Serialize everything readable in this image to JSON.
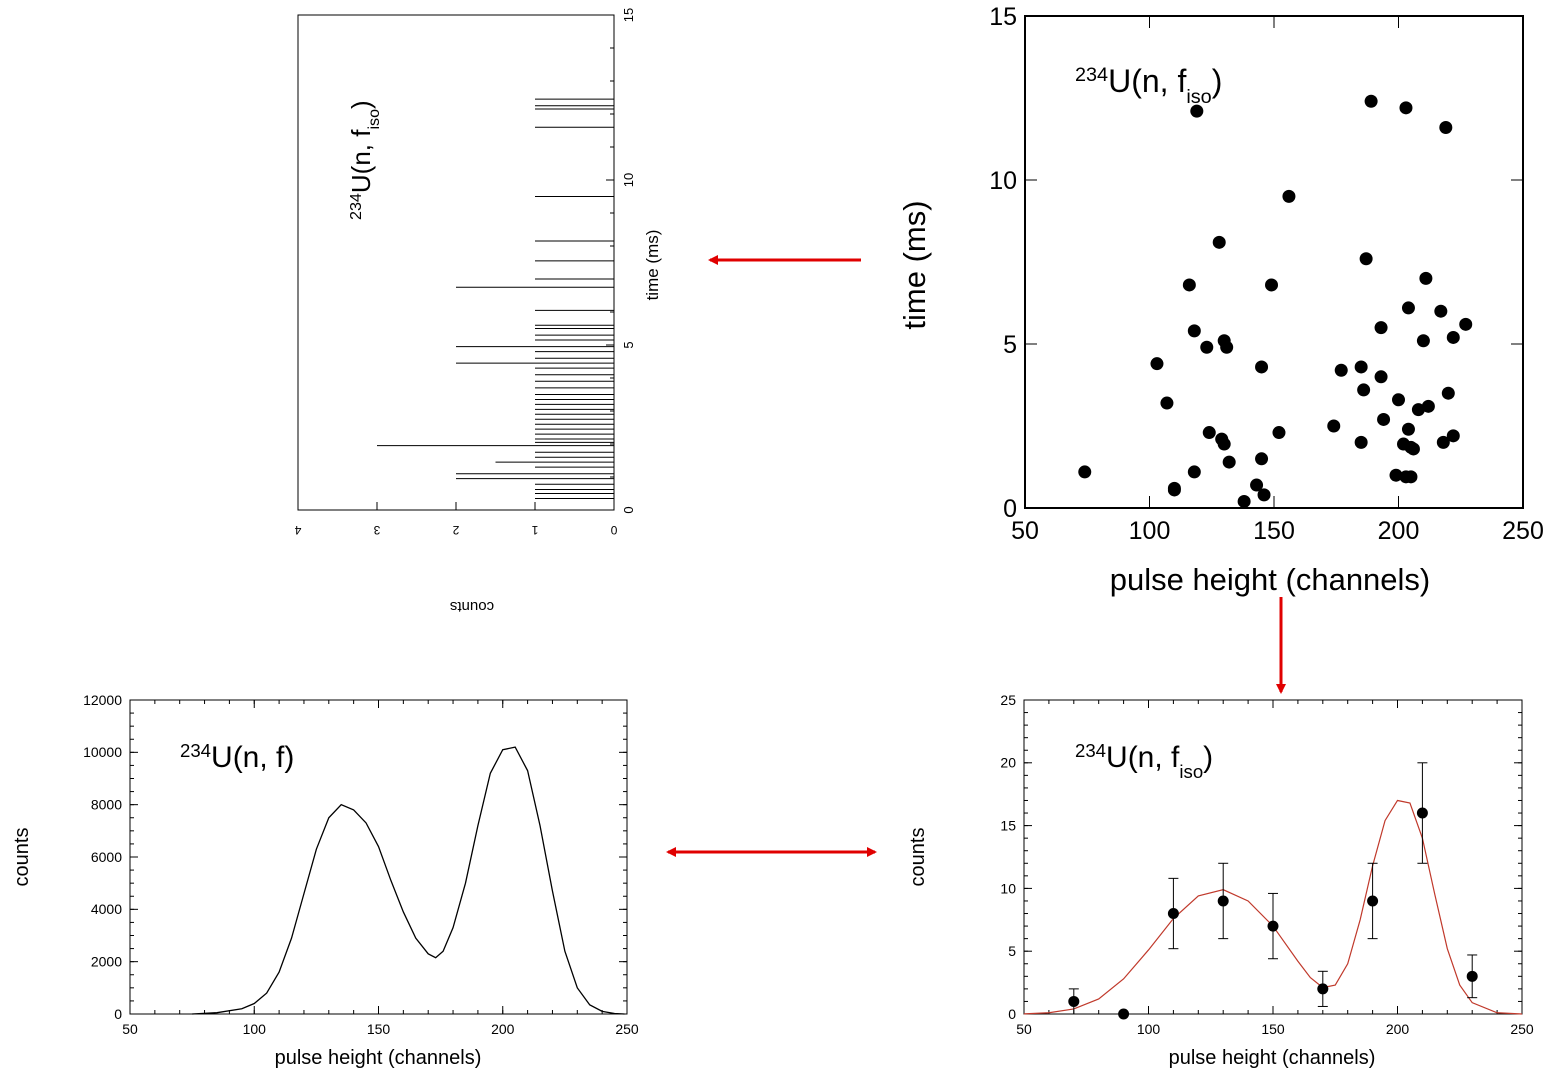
{
  "chart_data": [
    {
      "type": "bar",
      "orientation": "rotated-histogram",
      "annotation": {
        "base": "234",
        "main": "U(n, f",
        "sub": "iso",
        "close": ")"
      },
      "xlabel": "counts",
      "ylabel": "time  (ms)",
      "xlim": [
        0,
        4
      ],
      "ylim": [
        0,
        15
      ],
      "xticks": [
        "0",
        "1",
        "2",
        "3",
        "4"
      ],
      "yticks": [
        "0",
        "5",
        "10",
        "15"
      ],
      "bars": [
        {
          "t": 0.35,
          "c": 1
        },
        {
          "t": 0.5,
          "c": 1
        },
        {
          "t": 0.62,
          "c": 1
        },
        {
          "t": 0.78,
          "c": 1
        },
        {
          "t": 0.95,
          "c": 2
        },
        {
          "t": 1.1,
          "c": 2
        },
        {
          "t": 1.3,
          "c": 1
        },
        {
          "t": 1.45,
          "c": 1.5
        },
        {
          "t": 1.6,
          "c": 1
        },
        {
          "t": 1.75,
          "c": 1
        },
        {
          "t": 1.95,
          "c": 3
        },
        {
          "t": 2.05,
          "c": 1
        },
        {
          "t": 2.15,
          "c": 1
        },
        {
          "t": 2.3,
          "c": 1
        },
        {
          "t": 2.45,
          "c": 1
        },
        {
          "t": 2.6,
          "c": 1
        },
        {
          "t": 2.75,
          "c": 1
        },
        {
          "t": 2.9,
          "c": 1
        },
        {
          "t": 3.05,
          "c": 1
        },
        {
          "t": 3.2,
          "c": 1
        },
        {
          "t": 3.35,
          "c": 1
        },
        {
          "t": 3.5,
          "c": 1
        },
        {
          "t": 3.7,
          "c": 1
        },
        {
          "t": 3.9,
          "c": 1
        },
        {
          "t": 4.1,
          "c": 1
        },
        {
          "t": 4.3,
          "c": 1
        },
        {
          "t": 4.45,
          "c": 2
        },
        {
          "t": 4.6,
          "c": 1
        },
        {
          "t": 4.8,
          "c": 1
        },
        {
          "t": 4.95,
          "c": 2
        },
        {
          "t": 5.15,
          "c": 1
        },
        {
          "t": 5.3,
          "c": 1
        },
        {
          "t": 5.5,
          "c": 1
        },
        {
          "t": 5.6,
          "c": 1
        },
        {
          "t": 6.05,
          "c": 1
        },
        {
          "t": 6.75,
          "c": 2
        },
        {
          "t": 7.0,
          "c": 1
        },
        {
          "t": 7.55,
          "c": 1
        },
        {
          "t": 8.15,
          "c": 1
        },
        {
          "t": 9.5,
          "c": 1
        },
        {
          "t": 11.6,
          "c": 1
        },
        {
          "t": 12.15,
          "c": 1
        },
        {
          "t": 12.25,
          "c": 1
        },
        {
          "t": 12.45,
          "c": 1
        }
      ]
    },
    {
      "type": "scatter",
      "annotation": {
        "base": "234",
        "main": "U(n, f",
        "sub": "iso",
        "close": ")"
      },
      "xlabel": "pulse height (channels)",
      "ylabel": "time  (ms)",
      "xlim": [
        50,
        250
      ],
      "ylim": [
        0,
        15
      ],
      "xticks": [
        "50",
        "100",
        "150",
        "200",
        "250"
      ],
      "yticks": [
        "0",
        "5",
        "10",
        "15"
      ],
      "points": [
        [
          74,
          1.1
        ],
        [
          103,
          4.4
        ],
        [
          107,
          3.2
        ],
        [
          110,
          0.6
        ],
        [
          110,
          0.55
        ],
        [
          116,
          6.8
        ],
        [
          118,
          1.1
        ],
        [
          118,
          5.4
        ],
        [
          119,
          12.1
        ],
        [
          123,
          4.9
        ],
        [
          124,
          2.3
        ],
        [
          128,
          8.1
        ],
        [
          129,
          2.1
        ],
        [
          130,
          1.95
        ],
        [
          130,
          5.1
        ],
        [
          131,
          4.9
        ],
        [
          132,
          1.4
        ],
        [
          138,
          0.2
        ],
        [
          143,
          0.7
        ],
        [
          145,
          1.5
        ],
        [
          145,
          4.3
        ],
        [
          146,
          0.4
        ],
        [
          149,
          6.8
        ],
        [
          152,
          2.3
        ],
        [
          156,
          9.5
        ],
        [
          174,
          2.5
        ],
        [
          177,
          4.2
        ],
        [
          185,
          4.3
        ],
        [
          185,
          2.0
        ],
        [
          186,
          3.6
        ],
        [
          187,
          7.6
        ],
        [
          189,
          12.4
        ],
        [
          193,
          5.5
        ],
        [
          193,
          4.0
        ],
        [
          194,
          2.7
        ],
        [
          199,
          1.0
        ],
        [
          200,
          3.3
        ],
        [
          202,
          1.95
        ],
        [
          203,
          12.2
        ],
        [
          203,
          0.95
        ],
        [
          204,
          2.4
        ],
        [
          204,
          6.1
        ],
        [
          205,
          1.85
        ],
        [
          205,
          0.95
        ],
        [
          206,
          1.8
        ],
        [
          208,
          3.0
        ],
        [
          210,
          5.1
        ],
        [
          211,
          7.0
        ],
        [
          212,
          3.1
        ],
        [
          217,
          6.0
        ],
        [
          218,
          2.0
        ],
        [
          219,
          11.6
        ],
        [
          220,
          3.5
        ],
        [
          222,
          5.2
        ],
        [
          222,
          2.2
        ],
        [
          227,
          5.6
        ]
      ]
    },
    {
      "type": "line",
      "annotation": {
        "base": "234",
        "main": "U(n, f)"
      },
      "xlabel": "pulse height (channels)",
      "ylabel": "counts",
      "xlim": [
        50,
        250
      ],
      "ylim": [
        0,
        12000
      ],
      "xticks": [
        "50",
        "100",
        "150",
        "200",
        "250"
      ],
      "yticks": [
        "0",
        "2000",
        "4000",
        "6000",
        "8000",
        "10000",
        "12000"
      ],
      "x": [
        75,
        85,
        95,
        100,
        105,
        110,
        115,
        120,
        125,
        130,
        135,
        140,
        145,
        150,
        155,
        160,
        165,
        170,
        173,
        176,
        180,
        185,
        190,
        195,
        200,
        205,
        210,
        215,
        220,
        225,
        230,
        235,
        240,
        245,
        249
      ],
      "y": [
        0,
        50,
        200,
        400,
        800,
        1600,
        2900,
        4600,
        6300,
        7500,
        8000,
        7800,
        7300,
        6400,
        5100,
        3900,
        2900,
        2300,
        2150,
        2400,
        3300,
        5000,
        7200,
        9200,
        10100,
        10200,
        9300,
        7200,
        4700,
        2400,
        1000,
        350,
        100,
        20,
        0
      ]
    },
    {
      "type": "scatter",
      "annotation": {
        "base": "234",
        "main": "U(n, f",
        "sub": "iso",
        "close": ")"
      },
      "xlabel": "pulse height (channels)",
      "ylabel": "counts",
      "xlim": [
        50,
        250
      ],
      "ylim": [
        0,
        25
      ],
      "xticks": [
        "50",
        "100",
        "150",
        "200",
        "250"
      ],
      "yticks": [
        "0",
        "5",
        "10",
        "15",
        "20",
        "25"
      ],
      "points": [
        {
          "x": 70,
          "y": 1,
          "err": 1
        },
        {
          "x": 90,
          "y": 0,
          "err": 0
        },
        {
          "x": 110,
          "y": 8,
          "err": 2.8
        },
        {
          "x": 130,
          "y": 9,
          "err": 3
        },
        {
          "x": 150,
          "y": 7,
          "err": 2.6
        },
        {
          "x": 170,
          "y": 2,
          "err": 1.4
        },
        {
          "x": 190,
          "y": 9,
          "err": 3
        },
        {
          "x": 210,
          "y": 16,
          "err": 4
        },
        {
          "x": 230,
          "y": 3,
          "err": 1.7
        }
      ],
      "fit": {
        "color": "#c0392b",
        "x": [
          50,
          60,
          70,
          80,
          90,
          100,
          110,
          120,
          130,
          140,
          150,
          160,
          165,
          170,
          175,
          180,
          185,
          190,
          195,
          200,
          205,
          210,
          215,
          220,
          225,
          230,
          240,
          250
        ],
        "y": [
          0.01,
          0.1,
          0.4,
          1.2,
          2.8,
          5.1,
          7.6,
          9.4,
          9.9,
          9.0,
          7.0,
          4.2,
          2.9,
          2.1,
          2.3,
          4.0,
          7.5,
          11.8,
          15.4,
          17.0,
          16.8,
          14.0,
          9.5,
          5.2,
          2.3,
          0.9,
          0.1,
          0.0
        ]
      }
    }
  ],
  "arrows": {
    "color": "#e00000"
  }
}
